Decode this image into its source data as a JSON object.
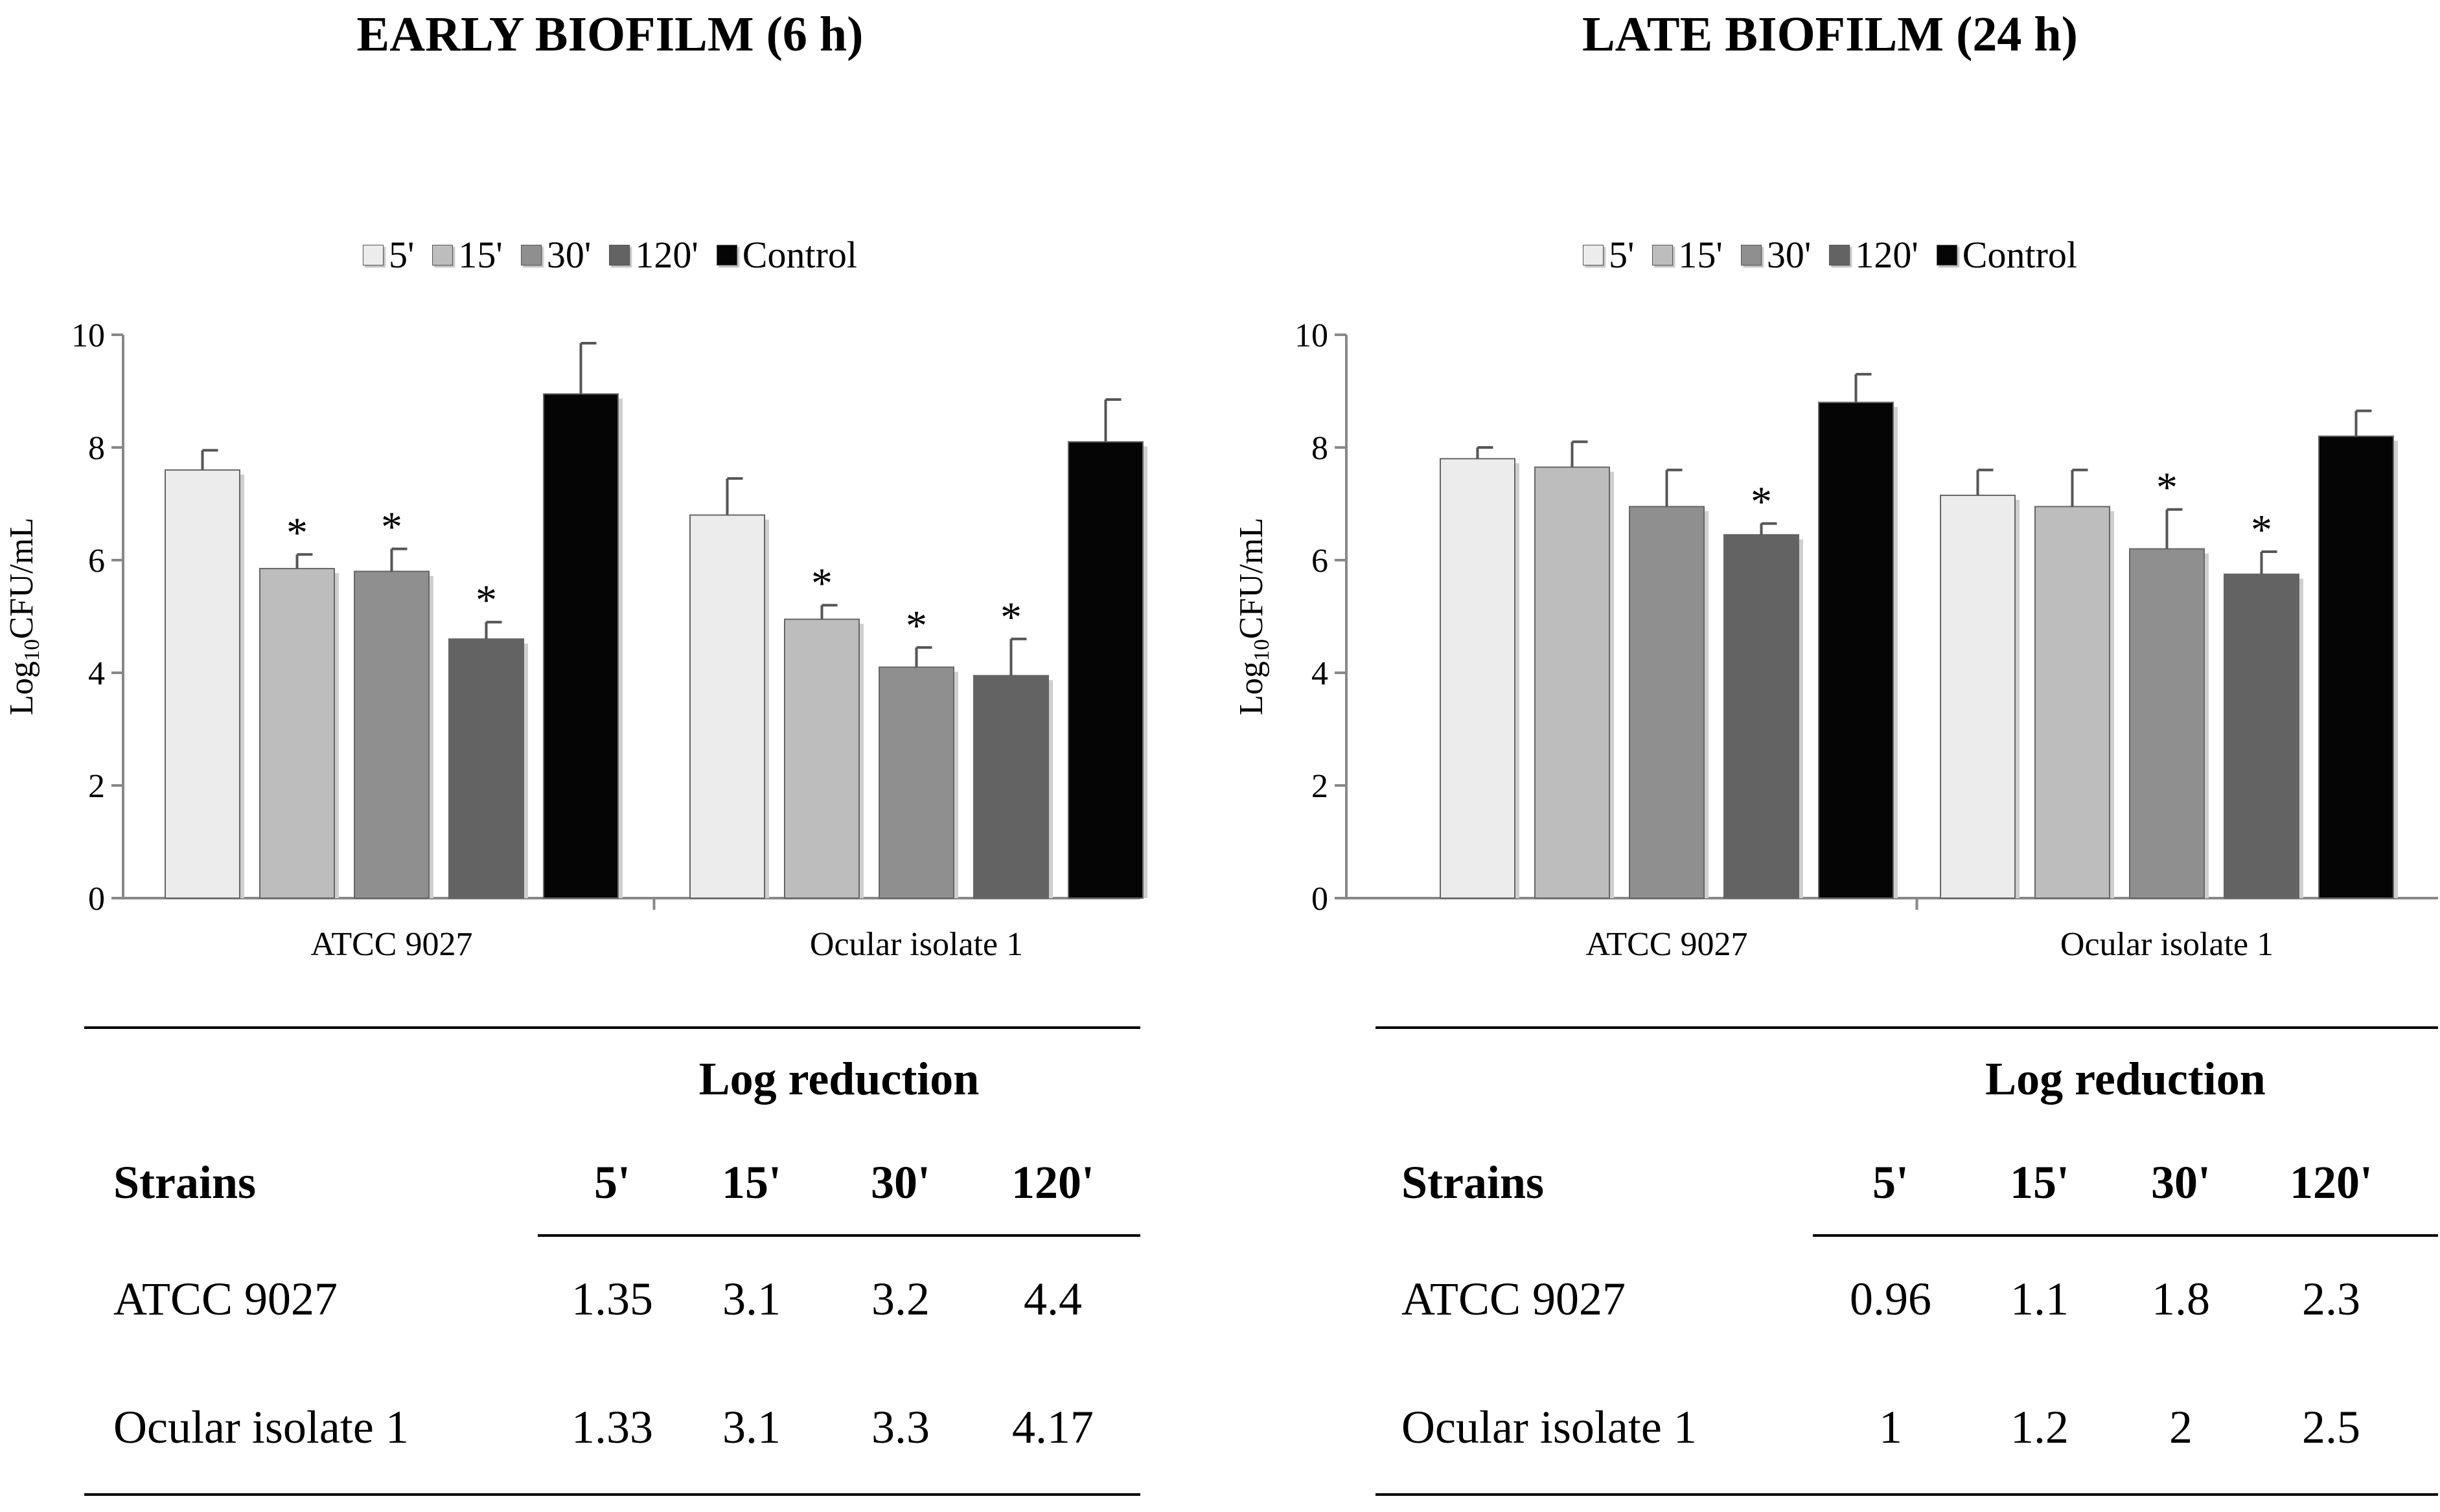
{
  "colors": {
    "t5": "#ececec",
    "t15": "#bdbdbd",
    "t30": "#8f8f8f",
    "t120": "#636363",
    "control": "#050505"
  },
  "legend": [
    "5'",
    "15'",
    "30'",
    "120'",
    "Control"
  ],
  "chart_data": [
    {
      "type": "bar",
      "title": "EARLY BIOFILM (6 h)",
      "ylabel": "Log10CFU/mL",
      "ylabel_main": "Log",
      "ylabel_sub": "10",
      "ylabel_rest": "CFU/mL",
      "ylim": [
        0,
        10
      ],
      "yticks": [
        "0",
        "2",
        "4",
        "6",
        "8",
        "10"
      ],
      "categories": [
        "ATCC 9027",
        "Ocular isolate 1"
      ],
      "series": [
        {
          "name": "5'",
          "values": [
            7.6,
            6.8
          ],
          "errors": [
            0.35,
            0.65
          ],
          "significant": [
            false,
            false
          ]
        },
        {
          "name": "15'",
          "values": [
            5.85,
            4.95
          ],
          "errors": [
            0.25,
            0.25
          ],
          "significant": [
            true,
            true
          ]
        },
        {
          "name": "30'",
          "values": [
            5.8,
            4.1
          ],
          "errors": [
            0.4,
            0.35
          ],
          "significant": [
            true,
            true
          ]
        },
        {
          "name": "120'",
          "values": [
            4.6,
            3.95
          ],
          "errors": [
            0.3,
            0.65
          ],
          "significant": [
            true,
            true
          ]
        },
        {
          "name": "Control",
          "values": [
            8.95,
            8.1
          ],
          "errors": [
            0.9,
            0.75
          ],
          "significant": [
            false,
            false
          ]
        }
      ]
    },
    {
      "type": "bar",
      "title": "LATE BIOFILM (24 h)",
      "ylabel": "Log10CFU/mL",
      "ylabel_main": "Log",
      "ylabel_sub": "10",
      "ylabel_rest": "CFU/mL",
      "ylim": [
        0,
        10
      ],
      "yticks": [
        "0",
        "2",
        "4",
        "6",
        "8",
        "10"
      ],
      "categories": [
        "ATCC 9027",
        "Ocular isolate 1"
      ],
      "series": [
        {
          "name": "5'",
          "values": [
            7.8,
            7.15
          ],
          "errors": [
            0.2,
            0.45
          ],
          "significant": [
            false,
            false
          ]
        },
        {
          "name": "15'",
          "values": [
            7.65,
            6.95
          ],
          "errors": [
            0.45,
            0.65
          ],
          "significant": [
            false,
            false
          ]
        },
        {
          "name": "30'",
          "values": [
            6.95,
            6.2
          ],
          "errors": [
            0.65,
            0.7
          ],
          "significant": [
            false,
            true
          ]
        },
        {
          "name": "120'",
          "values": [
            6.45,
            5.75
          ],
          "errors": [
            0.2,
            0.4
          ],
          "significant": [
            true,
            true
          ]
        },
        {
          "name": "Control",
          "values": [
            8.8,
            8.2
          ],
          "errors": [
            0.5,
            0.45
          ],
          "significant": [
            false,
            false
          ]
        }
      ]
    }
  ],
  "tables": [
    {
      "heading": "Log reduction",
      "strains_label": "Strains",
      "columns": [
        "5'",
        "15'",
        "30'",
        "120'"
      ],
      "rows": [
        {
          "strain": "ATCC 9027",
          "values": [
            "1.35",
            "3.1",
            "3.2",
            "4.4"
          ]
        },
        {
          "strain": "Ocular isolate 1",
          "values": [
            "1.33",
            "3.1",
            "3.3",
            "4.17"
          ]
        }
      ]
    },
    {
      "heading": "Log reduction",
      "strains_label": "Strains",
      "columns": [
        "5'",
        "15'",
        "30'",
        "120'"
      ],
      "rows": [
        {
          "strain": "ATCC 9027",
          "values": [
            "0.96",
            "1.1",
            "1.8",
            "2.3"
          ]
        },
        {
          "strain": "Ocular isolate 1",
          "values": [
            "1",
            "1.2",
            "2",
            "2.5"
          ]
        }
      ]
    }
  ]
}
